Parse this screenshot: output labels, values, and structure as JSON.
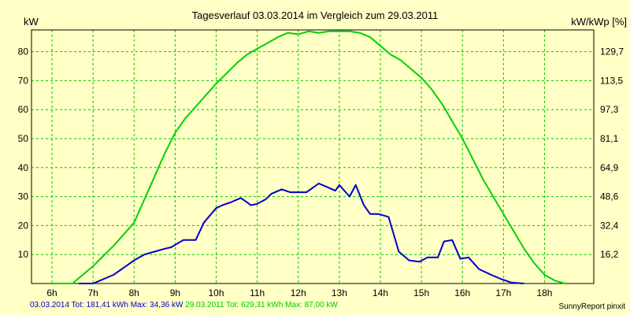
{
  "chart_data": {
    "type": "line",
    "title": "Tagesverlauf 03.03.2014 im Vergleich zum 29.03.2011",
    "ylabel_left": "kW",
    "ylabel_right": "kW/kWp [%]",
    "x_ticks": [
      "6h",
      "7h",
      "8h",
      "9h",
      "10h",
      "11h",
      "12h",
      "13h",
      "14h",
      "15h",
      "16h",
      "17h",
      "18h"
    ],
    "y_ticks_left": [
      10,
      20,
      30,
      40,
      50,
      60,
      70,
      80
    ],
    "y_ticks_right": [
      "16,2",
      "32,4",
      "48,6",
      "64,9",
      "81,1",
      "97,3",
      "113,5",
      "129,7"
    ],
    "xlim": [
      5.5,
      19.2
    ],
    "ylim": [
      0,
      87.5
    ],
    "grid": true,
    "series": [
      {
        "name": "03.03.2014",
        "color": "#0000c8",
        "x": [
          6.65,
          7.0,
          7.25,
          7.5,
          7.75,
          8.0,
          8.25,
          8.5,
          8.75,
          8.9,
          9.2,
          9.35,
          9.5,
          9.7,
          10.0,
          10.15,
          10.35,
          10.6,
          10.85,
          11.0,
          11.2,
          11.35,
          11.6,
          11.8,
          12.0,
          12.2,
          12.35,
          12.5,
          12.75,
          12.9,
          13.0,
          13.25,
          13.4,
          13.6,
          13.75,
          13.95,
          14.2,
          14.45,
          14.7,
          14.95,
          15.15,
          15.4,
          15.55,
          15.75,
          15.95,
          16.15,
          16.4,
          16.7,
          16.95,
          17.2,
          17.5
        ],
        "y": [
          0,
          0,
          1.5,
          3,
          5.5,
          8,
          10,
          11,
          12,
          12.5,
          15,
          15,
          15,
          21,
          26,
          27,
          28,
          29.5,
          27,
          27.5,
          29,
          31,
          32.5,
          31.5,
          31.5,
          31.5,
          33,
          34.5,
          33,
          32,
          34,
          30,
          34,
          27,
          24,
          24,
          23,
          11,
          8,
          7.5,
          9,
          9,
          14.5,
          15,
          8.5,
          9,
          5,
          3,
          1.5,
          0.3,
          0
        ],
        "total_label": "Tot: 181,41 kWh",
        "max_label": "Max: 34,36 kW"
      },
      {
        "name": "29.03.2011",
        "color": "#00d200",
        "x": [
          6.0,
          6.5,
          6.75,
          7.0,
          7.5,
          8.0,
          8.25,
          8.5,
          8.75,
          9.0,
          9.25,
          9.5,
          9.75,
          10.0,
          10.25,
          10.5,
          10.75,
          11.0,
          11.25,
          11.5,
          11.75,
          12.0,
          12.25,
          12.5,
          12.75,
          13.0,
          13.25,
          13.5,
          13.75,
          14.0,
          14.25,
          14.5,
          14.75,
          15.0,
          15.25,
          15.5,
          15.75,
          16.0,
          16.25,
          16.5,
          16.75,
          17.0,
          17.25,
          17.5,
          17.75,
          18.0,
          18.25,
          18.5
        ],
        "y": [
          0,
          0,
          3,
          6,
          13,
          21,
          29,
          37,
          45,
          52,
          57,
          61,
          65,
          69,
          72.5,
          76,
          79,
          81,
          83,
          85,
          86.5,
          86,
          87,
          86.5,
          87,
          87,
          87,
          86.5,
          85,
          82,
          79,
          77,
          74,
          71,
          67,
          62,
          56,
          50,
          43,
          36,
          30,
          24,
          18,
          12,
          7,
          3,
          1,
          0
        ],
        "total_label": "Tot: 629,31 kWh",
        "max_label": "Max: 87,00 kW"
      }
    ]
  },
  "credit": "SunnyReport pinxit"
}
